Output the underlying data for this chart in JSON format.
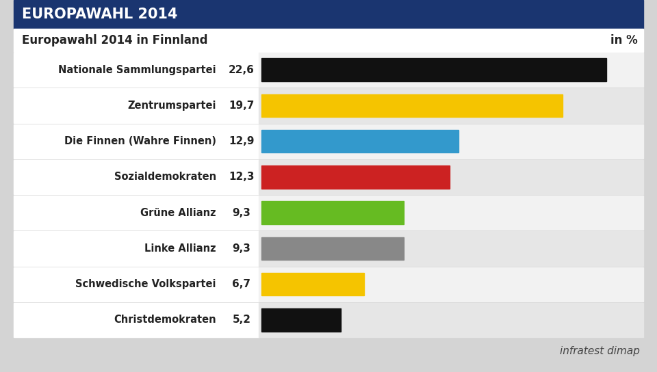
{
  "title_banner": "EUROPAWAHL 2014",
  "subtitle": "Europawahl 2014 in Finnland",
  "subtitle_right": "in %",
  "source": "infratest dimap",
  "categories": [
    "Nationale Sammlungspartei",
    "Zentrumspartei",
    "Die Finnen (Wahre Finnen)",
    "Sozialdemokraten",
    "Grüne Allianz",
    "Linke Allianz",
    "Schwedische Volkspartei",
    "Christdemokraten"
  ],
  "values": [
    22.6,
    19.7,
    12.9,
    12.3,
    9.3,
    9.3,
    6.7,
    5.2
  ],
  "bar_colors": [
    "#111111",
    "#F5C400",
    "#3399CC",
    "#CC2222",
    "#66BB22",
    "#888888",
    "#F5C400",
    "#111111"
  ],
  "background_color": "#D4D4D4",
  "banner_color": "#1A3570",
  "banner_text_color": "#FFFFFF",
  "label_color": "#222222",
  "value_color": "#222222",
  "row_bg_even": "#F2F2F2",
  "row_bg_odd": "#E6E6E6",
  "white_bar": "#FFFFFF",
  "max_val": 25.0,
  "fig_width": 9.6,
  "fig_height": 5.44,
  "dpi": 100
}
